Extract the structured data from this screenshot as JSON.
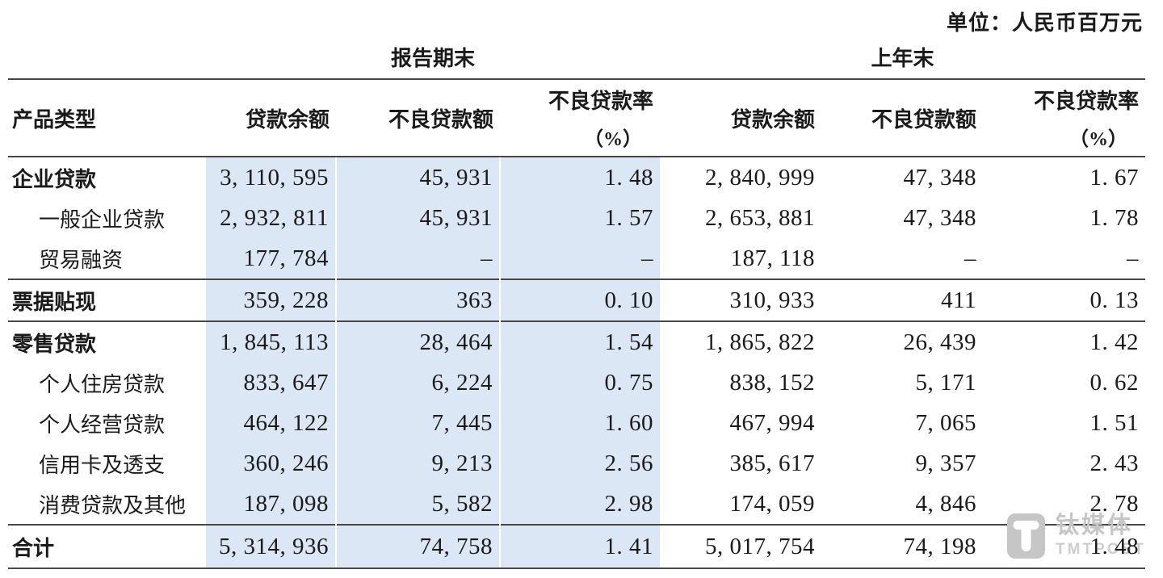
{
  "meta": {
    "unit_label": "单位：人民币百万元"
  },
  "table": {
    "group_headers": [
      {
        "label": "报告期末"
      },
      {
        "label": "上年末"
      }
    ],
    "columns": {
      "product": "产品类型",
      "balance": "贷款余额",
      "npl_amount": "不良贷款额",
      "npl_ratio": "不良贷款率",
      "npl_ratio_unit": "（%）"
    },
    "rows": [
      {
        "label": "企业贷款",
        "bold": true,
        "indent": false,
        "rule_above": false,
        "cur": [
          "3, 110, 595",
          "45, 931",
          "1. 48"
        ],
        "prev": [
          "2, 840, 999",
          "47, 348",
          "1. 67"
        ]
      },
      {
        "label": "一般企业贷款",
        "bold": false,
        "indent": true,
        "rule_above": false,
        "cur": [
          "2, 932, 811",
          "45, 931",
          "1. 57"
        ],
        "prev": [
          "2, 653, 881",
          "47, 348",
          "1. 78"
        ]
      },
      {
        "label": "贸易融资",
        "bold": false,
        "indent": true,
        "rule_above": false,
        "cur": [
          "177, 784",
          "–",
          "–"
        ],
        "prev": [
          "187, 118",
          "–",
          "–"
        ]
      },
      {
        "label": "票据贴现",
        "bold": true,
        "indent": false,
        "rule_above": true,
        "cur": [
          "359, 228",
          "363",
          "0. 10"
        ],
        "prev": [
          "310, 933",
          "411",
          "0. 13"
        ]
      },
      {
        "label": "零售贷款",
        "bold": true,
        "indent": false,
        "rule_above": true,
        "cur": [
          "1, 845, 113",
          "28, 464",
          "1. 54"
        ],
        "prev": [
          "1, 865, 822",
          "26, 439",
          "1. 42"
        ]
      },
      {
        "label": "个人住房贷款",
        "bold": false,
        "indent": true,
        "rule_above": false,
        "cur": [
          "833, 647",
          "6, 224",
          "0. 75"
        ],
        "prev": [
          "838, 152",
          "5, 171",
          "0. 62"
        ]
      },
      {
        "label": "个人经营贷款",
        "bold": false,
        "indent": true,
        "rule_above": false,
        "cur": [
          "464, 122",
          "7, 445",
          "1. 60"
        ],
        "prev": [
          "467, 994",
          "7, 065",
          "1. 51"
        ]
      },
      {
        "label": "信用卡及透支",
        "bold": false,
        "indent": true,
        "rule_above": false,
        "cur": [
          "360, 246",
          "9, 213",
          "2. 56"
        ],
        "prev": [
          "385, 617",
          "9, 357",
          "2. 43"
        ]
      },
      {
        "label": "消费贷款及其他",
        "bold": false,
        "indent": true,
        "rule_above": false,
        "cur": [
          "187, 098",
          "5, 582",
          "2. 98"
        ],
        "prev": [
          "174, 059",
          "4, 846",
          "2. 78"
        ]
      },
      {
        "label": "合计",
        "bold": true,
        "indent": false,
        "rule_above": true,
        "cur": [
          "5, 314, 936",
          "74, 758",
          "1. 41"
        ],
        "prev": [
          "5, 017, 754",
          "74, 198",
          "1. 48"
        ]
      }
    ]
  },
  "watermark": {
    "name_cn": "钛媒体",
    "name_en": "TMTPOST"
  },
  "colors": {
    "highlight_column": "#dbe7f4",
    "rule_line": "#474747",
    "text": "#1a1a1a",
    "watermark_gray": "#c6c6c6"
  }
}
